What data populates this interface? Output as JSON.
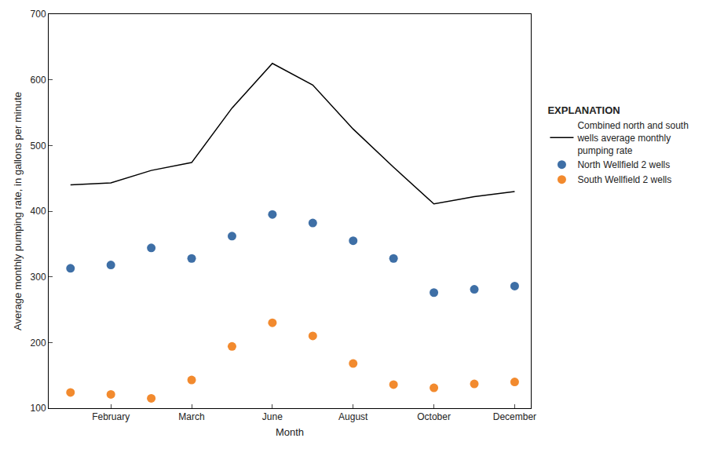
{
  "chart_data": {
    "type": "line",
    "x_label": "Month",
    "y_label": "Average monthly pumping rate, in gallons per minute",
    "legend_title": "EXPLANATION",
    "legend": "right",
    "grid": false,
    "categories": [
      null,
      "February",
      null,
      "March",
      null,
      "June",
      null,
      "August",
      null,
      "October",
      null,
      "December"
    ],
    "ylim": [
      100,
      700
    ],
    "yticks": [
      100,
      200,
      300,
      400,
      500,
      600,
      700
    ],
    "series": [
      {
        "name": "Combined north and south wells average monthly pumping rate",
        "type": "line",
        "line_style": "solid",
        "color": "#000000",
        "values": [
          440,
          443,
          462,
          474,
          557,
          625,
          592,
          525,
          467,
          411,
          422,
          430
        ]
      },
      {
        "name": "North Wellfield 2 wells",
        "type": "scatter",
        "marker": "circle",
        "color": "#3e6fa6",
        "values": [
          313,
          318,
          344,
          328,
          362,
          395,
          382,
          355,
          328,
          276,
          281,
          286
        ]
      },
      {
        "name": "South Wellfield 2 wells",
        "type": "scatter",
        "marker": "circle",
        "color": "#f28a2e",
        "values": [
          124,
          121,
          115,
          143,
          194,
          230,
          210,
          168,
          136,
          131,
          137,
          140
        ]
      }
    ]
  }
}
